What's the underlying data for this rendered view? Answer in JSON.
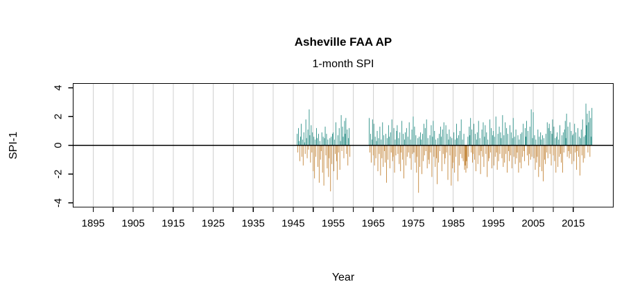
{
  "chart_data": {
    "type": "bar",
    "title": "Asheville FAA AP",
    "subtitle": "1-month SPI",
    "xlabel": "Year",
    "ylabel": "SPI-1",
    "xlim": [
      1890,
      2025
    ],
    "ylim": [
      -4.3,
      4.3
    ],
    "grid": "vertical-gridlines-every-5-years",
    "legend": "none",
    "x_ticks": [
      1895,
      1900,
      1905,
      1910,
      1915,
      1920,
      1925,
      1930,
      1935,
      1940,
      1945,
      1950,
      1955,
      1960,
      1965,
      1970,
      1975,
      1980,
      1985,
      1990,
      1995,
      2000,
      2005,
      2010,
      2015
    ],
    "x_tick_labels": [
      1895,
      1905,
      1915,
      1925,
      1935,
      1945,
      1955,
      1965,
      1975,
      1985,
      1995,
      2005,
      2015
    ],
    "y_ticks": [
      -4,
      -2,
      0,
      2,
      4
    ],
    "gaps": [
      [
        1959.2,
        1964.0
      ]
    ],
    "segments": [
      {
        "start_year": 1946.0,
        "samples_per_year": 6,
        "values": [
          0.8,
          -0.5,
          1.2,
          0.3,
          -1.1,
          0.6,
          1.5,
          -0.8,
          0.4,
          -1.4,
          0.9,
          0.2,
          -0.6,
          1.8,
          0.5,
          -0.9,
          1.1,
          -0.3,
          2.5,
          0.7,
          -1.2,
          1.4,
          -0.5,
          0.9,
          -1.8,
          0.6,
          -2.3,
          0.4,
          -0.8,
          1.2,
          0.5,
          -1.5,
          0.8,
          -2.6,
          0.3,
          -1.0,
          -0.4,
          0.9,
          -1.9,
          0.6,
          -2.8,
          0.5,
          1.3,
          -0.7,
          0.8,
          -1.6,
          0.4,
          -2.2,
          -0.9,
          0.5,
          -3.2,
          0.6,
          -1.3,
          0.8,
          0.9,
          -1.8,
          0.4,
          -0.6,
          1.6,
          -1.1,
          -2.4,
          0.7,
          -0.5,
          1.2,
          -1.7,
          0.3,
          2.1,
          -0.4,
          1.3,
          0.6,
          -0.9,
          1.7,
          0.8,
          1.9,
          -0.6,
          1.1,
          -1.4,
          0.5,
          1.2,
          -0.8
        ]
      },
      {
        "start_year": 1964.0,
        "samples_per_year": 6,
        "values": [
          1.9,
          -0.5,
          0.8,
          -1.2,
          0.4,
          1.8,
          -0.7,
          1.5,
          -1.4,
          0.6,
          -0.9,
          0.3,
          1.0,
          -1.8,
          0.5,
          -0.6,
          1.3,
          -2.1,
          0.4,
          -0.9,
          1.6,
          -1.5,
          0.7,
          -0.4,
          -1.2,
          0.8,
          -2.6,
          0.5,
          -1.0,
          1.4,
          0.6,
          -1.6,
          0.9,
          -0.5,
          1.8,
          -1.1,
          -0.8,
          1.2,
          -1.9,
          0.4,
          -0.7,
          1.0,
          1.4,
          -0.6,
          0.5,
          -1.3,
          0.9,
          -1.8,
          -0.5,
          1.7,
          -1.0,
          0.8,
          -2.3,
          0.4,
          0.9,
          -1.4,
          1.2,
          -0.8,
          0.6,
          -0.5,
          1.6,
          -0.9,
          0.4,
          -1.7,
          1.1,
          -0.6,
          2.0,
          -0.5,
          1.3,
          -1.2,
          0.7,
          -1.9,
          -0.8,
          0.5,
          -3.3,
          0.6,
          -1.5,
          0.9,
          0.4,
          -2.0,
          0.8,
          -1.1,
          1.5,
          -0.7,
          1.2,
          -0.4,
          1.8,
          -1.6,
          0.5,
          -1.0,
          -1.3,
          0.7,
          -0.5,
          1.4,
          -2.2,
          0.6,
          1.7,
          -0.8,
          1.0,
          -1.5,
          0.4,
          -0.9,
          -2.7,
          0.5,
          -1.2,
          0.8,
          -0.4,
          1.3,
          0.6,
          -1.8,
          1.1,
          -0.6,
          1.6,
          -1.3,
          -0.9,
          1.4,
          -0.5,
          0.8,
          -2.4,
          0.4,
          1.1,
          -0.7,
          0.6,
          -2.8,
          0.5,
          -1.6,
          -1.2,
          0.9,
          -1.9,
          0.4,
          -0.8,
          1.5,
          0.5,
          -2.5,
          0.7,
          -1.4,
          1.0,
          -0.6,
          1.8,
          -0.9,
          0.4,
          -1.1,
          0.8,
          -1.7,
          -1.4,
          -1.9,
          -1.1,
          -1.6,
          0.6,
          -0.8,
          1.3,
          0.7,
          1.9,
          -0.5,
          1.1,
          -1.2,
          -0.6,
          1.5,
          -1.0,
          0.8,
          -1.8,
          0.4,
          0.9,
          -1.3,
          1.7,
          -0.7,
          0.5,
          -2.0,
          -0.4,
          1.1,
          -0.8,
          1.6,
          -1.5,
          0.6,
          1.4,
          -0.6,
          0.9,
          -2.2,
          0.4,
          -1.1,
          -0.9,
          1.8,
          -0.5,
          1.2,
          -1.6,
          0.7,
          1.0,
          -1.4,
          0.6,
          -0.8,
          2.0,
          -0.5,
          -1.7,
          0.8,
          -1.1,
          1.3,
          -0.6,
          0.9,
          0.5,
          -0.9,
          2.1,
          -1.5,
          0.7,
          -1.2,
          1.6,
          -0.6,
          1.2,
          -1.9,
          0.8,
          -0.4,
          -1.1,
          1.4,
          -0.7,
          0.9,
          -1.6,
          0.5,
          1.9,
          -0.8,
          0.6,
          -1.3,
          1.1,
          -0.9,
          -0.5,
          0.7,
          -1.9,
          0.4,
          -1.2,
          0.8,
          -1.6,
          0.9,
          -0.8,
          1.5,
          -0.4,
          -1.1,
          1.2,
          0.6,
          1.7,
          -0.7,
          1.0,
          -1.4,
          -0.6,
          1.3,
          -1.0,
          2.5,
          -0.8,
          0.5,
          2.3,
          -0.9,
          0.7,
          -1.7,
          0.4,
          -1.2,
          -0.8,
          1.1,
          -2.2,
          0.6,
          -1.5,
          0.9,
          0.4,
          -1.8,
          0.7,
          -2.5,
          0.5,
          -1.0,
          -1.3,
          0.8,
          -0.5,
          1.6,
          -0.9,
          1.2,
          1.5,
          -0.6,
          1.0,
          -1.4,
          0.8,
          1.8,
          -0.7,
          1.3,
          -1.1,
          0.5,
          -1.9,
          0.6,
          0.9,
          -1.5,
          0.4,
          -0.8,
          1.4,
          -0.6,
          -1.2,
          0.7,
          -1.9,
          0.9,
          -0.5,
          1.1,
          1.7,
          0.5,
          2.2,
          -0.8,
          1.3,
          -0.4,
          -0.9,
          1.6,
          -0.6,
          1.0,
          -1.3,
          0.7,
          0.8,
          -1.1,
          1.5,
          -0.5,
          0.9,
          -1.7,
          -0.4,
          1.2,
          -0.8,
          0.6,
          -2.1,
          0.5,
          1.1,
          -0.7,
          1.8,
          -1.2,
          0.6,
          -0.9,
          0.7,
          2.9,
          1.4,
          2.2,
          -0.5,
          1.6,
          2.4,
          -0.8,
          1.9,
          0.6,
          2.6
        ]
      }
    ],
    "colors": {
      "positive_bar": "#2F9189",
      "negative_bar": "#C4873C",
      "gridline": "#CFCFCF",
      "axis_line": "#000000",
      "zero_line": "#000000",
      "background": "#FFFFFF"
    }
  }
}
